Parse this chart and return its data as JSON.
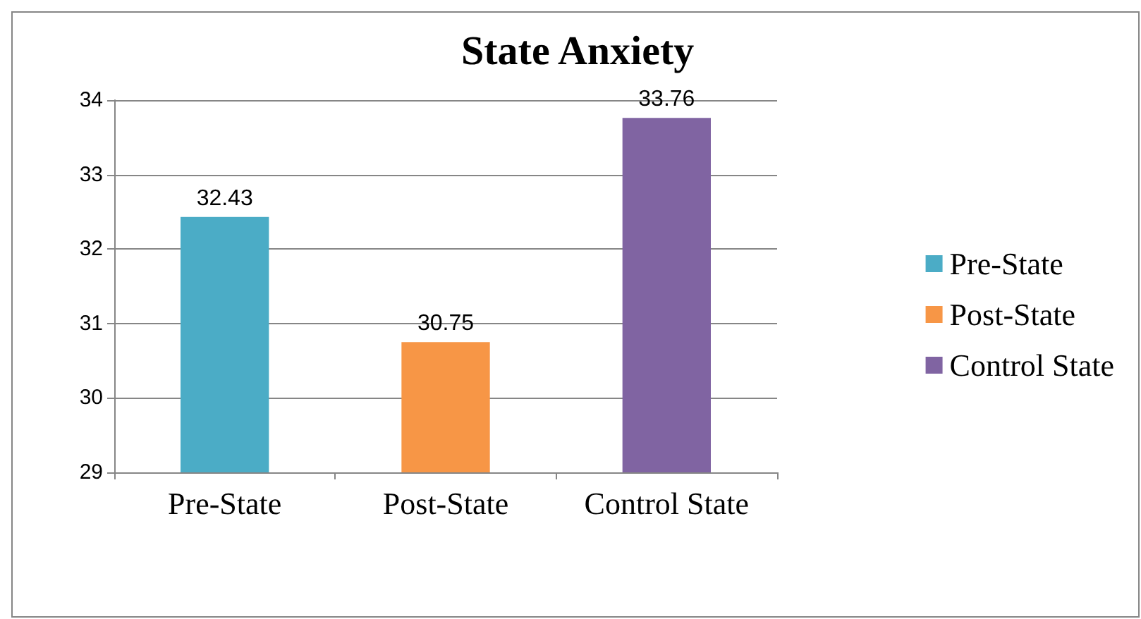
{
  "chart_data": {
    "type": "bar",
    "title": "State Anxiety",
    "categories": [
      "Pre-State",
      "Post-State",
      "Control State"
    ],
    "series": [
      {
        "name": "Pre-State",
        "color": "#4bacc6",
        "values": [
          32.43,
          null,
          null
        ]
      },
      {
        "name": "Post-State",
        "color": "#f79646",
        "values": [
          null,
          30.75,
          null
        ]
      },
      {
        "name": "Control State",
        "color": "#8064a2",
        "values": [
          null,
          null,
          33.76
        ]
      }
    ],
    "ylim": [
      29,
      34
    ],
    "yticks": [
      29,
      30,
      31,
      32,
      33,
      34
    ],
    "grid": "y",
    "legend": "right",
    "data_labels": true
  }
}
